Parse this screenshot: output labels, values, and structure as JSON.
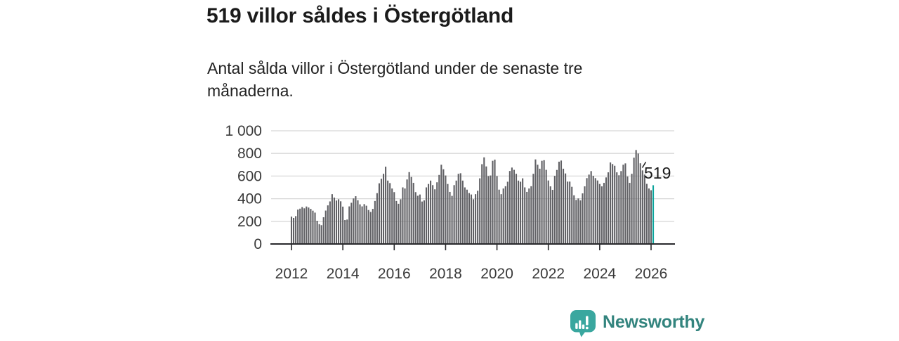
{
  "header": {
    "title": "519 villor såldes i Östergötland",
    "subtitle": "Antal sålda villor i Östergötland under de senaste tre månaderna."
  },
  "chart_data": {
    "type": "bar",
    "title": "519 villor såldes i Östergötland",
    "subtitle": "Antal sålda villor i Östergötland under de senaste tre månaderna.",
    "frequency": "monthly",
    "x_start": "2012-01",
    "x_end": "2026-02",
    "xlabel": "",
    "ylabel": "",
    "ylim": [
      0,
      1000
    ],
    "yticks": [
      0,
      200,
      400,
      600,
      800,
      1000
    ],
    "ytick_labels": [
      "0",
      "200",
      "400",
      "600",
      "800",
      "1 000"
    ],
    "xtick_years": [
      2012,
      2014,
      2016,
      2018,
      2020,
      2022,
      2024,
      2026
    ],
    "xtick_labels": [
      "2012",
      "2014",
      "2016",
      "2018",
      "2020",
      "2022",
      "2024",
      "2026"
    ],
    "grid": "horizontal",
    "legend": "none",
    "bar_color": "#606064",
    "highlight_color": "#0ca49c",
    "highlight_index": 169,
    "annotation": {
      "text": "519",
      "value": 519
    },
    "values": [
      242,
      230,
      246,
      304,
      312,
      326,
      315,
      331,
      322,
      310,
      294,
      277,
      205,
      175,
      166,
      236,
      295,
      341,
      376,
      440,
      410,
      384,
      395,
      377,
      330,
      211,
      216,
      332,
      364,
      402,
      422,
      386,
      350,
      332,
      352,
      338,
      300,
      283,
      310,
      380,
      449,
      536,
      576,
      620,
      683,
      560,
      538,
      490,
      458,
      380,
      355,
      395,
      500,
      490,
      570,
      635,
      592,
      540,
      458,
      426,
      437,
      375,
      385,
      500,
      530,
      560,
      520,
      483,
      545,
      610,
      700,
      660,
      605,
      530,
      460,
      425,
      520,
      560,
      620,
      625,
      560,
      500,
      480,
      450,
      437,
      395,
      440,
      470,
      580,
      705,
      765,
      685,
      600,
      605,
      735,
      745,
      600,
      480,
      440,
      490,
      510,
      550,
      645,
      675,
      655,
      620,
      560,
      550,
      580,
      500,
      460,
      490,
      510,
      620,
      747,
      700,
      665,
      735,
      740,
      655,
      561,
      509,
      478,
      602,
      654,
      727,
      737,
      665,
      623,
      551,
      551,
      505,
      430,
      389,
      402,
      385,
      447,
      509,
      582,
      613,
      644,
      602,
      582,
      561,
      530,
      509,
      540,
      588,
      633,
      720,
      706,
      691,
      633,
      607,
      644,
      700,
      712,
      596,
      540,
      620,
      762,
      830,
      799,
      713,
      650,
      613,
      531,
      490,
      475,
      519
    ]
  },
  "footer": {
    "logo_text": "Newsworthy"
  },
  "colors": {
    "bar_gray": "#606064",
    "accent_teal": "#0ca49c",
    "logo_icon_teal": "#3aa79f",
    "logo_text_teal": "#33847e",
    "axis": "#29292c",
    "gridline": "#d8d8d8",
    "tick_label": "#3a3a3a"
  }
}
